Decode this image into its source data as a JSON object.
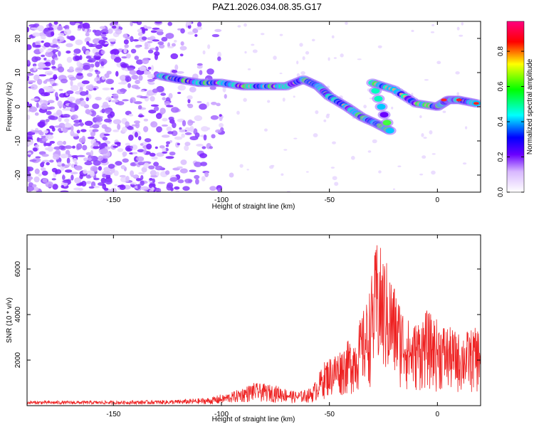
{
  "title": "PAZ1.2026.034.08.35.G17",
  "chart_data": [
    {
      "type": "heatmap",
      "xlabel": "Height of straight line (km)",
      "ylabel": "Frequency (Hz)",
      "xlim": [
        -190,
        20
      ],
      "ylim": [
        -25,
        25
      ],
      "xticks": [
        -150,
        -100,
        -50,
        0
      ],
      "yticks": [
        -20,
        -10,
        0,
        10,
        20
      ],
      "colorbar": {
        "label": "Normalized spectral amplitude",
        "range": [
          0,
          0.97
        ],
        "ticks": [
          0.0,
          0.2,
          0.4,
          0.6,
          0.8
        ]
      },
      "ridge": [
        {
          "x": -128,
          "y": 9
        },
        {
          "x": -120,
          "y": 8
        },
        {
          "x": -110,
          "y": 7
        },
        {
          "x": -100,
          "y": 7
        },
        {
          "x": -90,
          "y": 6
        },
        {
          "x": -80,
          "y": 6
        },
        {
          "x": -70,
          "y": 6
        },
        {
          "x": -62,
          "y": 8
        },
        {
          "x": -55,
          "y": 6
        },
        {
          "x": -50,
          "y": 3
        },
        {
          "x": -42,
          "y": 0
        },
        {
          "x": -35,
          "y": -3
        },
        {
          "x": -28,
          "y": -5
        },
        {
          "x": -22,
          "y": -7
        },
        {
          "x": -30,
          "y": 7
        },
        {
          "x": -20,
          "y": 5
        },
        {
          "x": -10,
          "y": 1
        },
        {
          "x": 0,
          "y": 0
        },
        {
          "x": 5,
          "y": 2
        },
        {
          "x": 10,
          "y": 2
        },
        {
          "x": 18,
          "y": 1
        }
      ]
    },
    {
      "type": "line",
      "xlabel": "Height of straight line (km)",
      "ylabel": "SNR (10 * v/v)",
      "xlim": [
        -190,
        20
      ],
      "ylim": [
        0,
        7500
      ],
      "xticks": [
        -150,
        -100,
        -50,
        0
      ],
      "yticks": [
        2000,
        4000,
        6000
      ],
      "series": [
        {
          "color": "#ee2222",
          "envelope": [
            {
              "x": -190,
              "y": 150
            },
            {
              "x": -150,
              "y": 150
            },
            {
              "x": -120,
              "y": 200
            },
            {
              "x": -105,
              "y": 300
            },
            {
              "x": -95,
              "y": 600
            },
            {
              "x": -85,
              "y": 1000
            },
            {
              "x": -75,
              "y": 900
            },
            {
              "x": -65,
              "y": 600
            },
            {
              "x": -58,
              "y": 800
            },
            {
              "x": -52,
              "y": 2000
            },
            {
              "x": -45,
              "y": 2500
            },
            {
              "x": -38,
              "y": 3200
            },
            {
              "x": -32,
              "y": 4800
            },
            {
              "x": -28,
              "y": 7300
            },
            {
              "x": -24,
              "y": 6500
            },
            {
              "x": -18,
              "y": 4800
            },
            {
              "x": -12,
              "y": 3500
            },
            {
              "x": -5,
              "y": 4200
            },
            {
              "x": 0,
              "y": 3800
            },
            {
              "x": 10,
              "y": 3200
            },
            {
              "x": 20,
              "y": 3500
            }
          ]
        }
      ]
    }
  ]
}
